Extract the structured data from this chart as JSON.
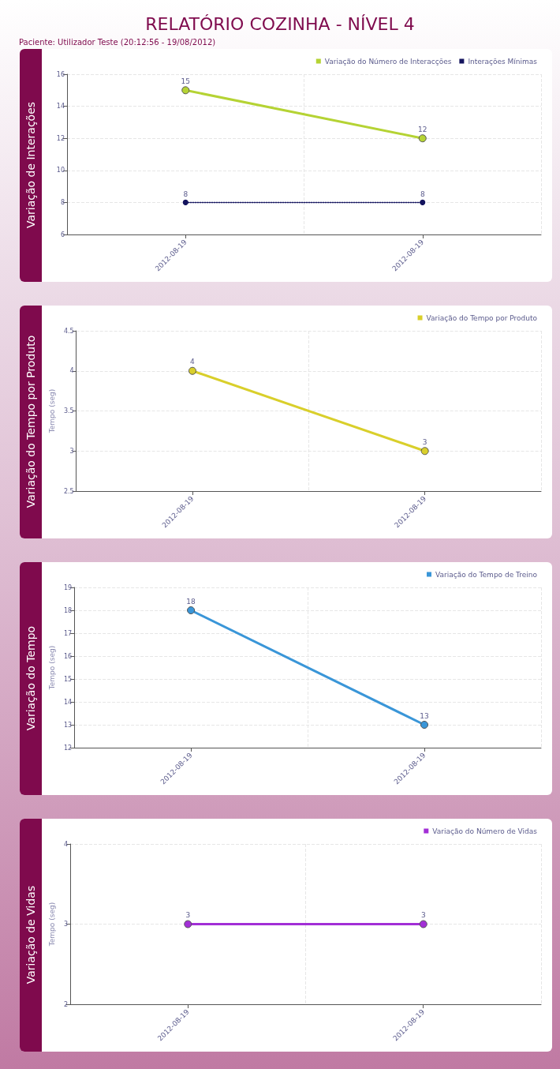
{
  "chart_data": [
    {
      "type": "line",
      "title": "Variação de Interações",
      "annotations": [
        "RELATÓRIO COZINHA - NÍVEL 4",
        "Paciente: Utilizador Teste (20:12:56 - 19/08/2012)"
      ],
      "categories": [
        "2012-08-19",
        "2012-08-19"
      ],
      "series": [
        {
          "name": "Variação do Número de Interacções",
          "color": "#b5d334",
          "values": [
            15,
            12
          ],
          "marker": "circle",
          "line_style": "solid"
        },
        {
          "name": "Interações Mínimas",
          "color": "#14145e",
          "values": [
            8,
            8
          ],
          "marker": "circle",
          "line_style": "dotted"
        }
      ],
      "ylim": [
        6,
        16
      ],
      "yticks": [
        6,
        8,
        10,
        12,
        14,
        16
      ],
      "grid": true,
      "legend": "top right",
      "data_labels": true
    },
    {
      "type": "line",
      "title": "Variação do Tempo por Produto",
      "ylabel": "Tempo (seg)",
      "categories": [
        "2012-08-19",
        "2012-08-19"
      ],
      "series": [
        {
          "name": "Variação do Tempo por Produto",
          "color": "#d9cf2b",
          "values": [
            4,
            3
          ]
        }
      ],
      "ylim": [
        2.5,
        4.5
      ],
      "yticks": [
        2.5,
        3,
        3.5,
        4,
        4.5
      ],
      "grid": true,
      "legend": "top right",
      "data_labels": true,
      "marker": "circle",
      "line_style": "solid"
    },
    {
      "type": "line",
      "title": "Variação do Tempo",
      "ylabel": "Tempo (seg)",
      "categories": [
        "2012-08-19",
        "2012-08-19"
      ],
      "series": [
        {
          "name": "Variação do Tempo de Treino",
          "color": "#3a96d8",
          "values": [
            18,
            13
          ]
        }
      ],
      "ylim": [
        12,
        19
      ],
      "yticks": [
        12,
        13,
        14,
        15,
        16,
        17,
        18,
        19
      ],
      "grid": true,
      "legend": "top right",
      "data_labels": true,
      "marker": "circle",
      "line_style": "solid"
    },
    {
      "type": "line",
      "title": "Variação de Vidas",
      "ylabel": "Tempo (seg)",
      "categories": [
        "2012-08-19",
        "2012-08-19"
      ],
      "series": [
        {
          "name": "Variação do Número de Vidas",
          "color": "#a22fd6",
          "values": [
            3,
            3
          ]
        }
      ],
      "ylim": [
        2,
        4
      ],
      "yticks": [
        2,
        3,
        4
      ],
      "grid": true,
      "legend": "top right",
      "data_labels": true,
      "marker": "circle",
      "line_style": "solid"
    }
  ]
}
